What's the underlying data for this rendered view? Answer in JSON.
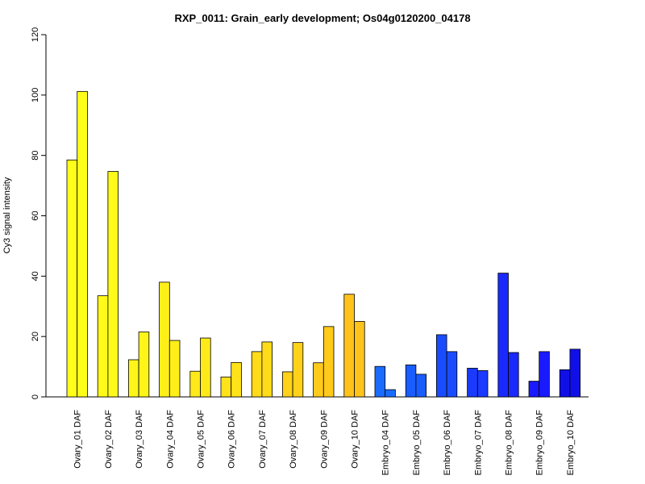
{
  "chart_data": {
    "type": "bar",
    "title": "RXP_0011: Grain_early development; Os04g0120200_04178",
    "xlabel": "",
    "ylabel": "Cy3 signal intensity",
    "ylim": [
      0,
      120
    ],
    "yticks": [
      0,
      20,
      40,
      60,
      80,
      100,
      120
    ],
    "grid": false,
    "legend": "none",
    "categories": [
      "Ovary_01 DAF",
      "Ovary_02 DAF",
      "Ovary_03 DAF",
      "Ovary_04 DAF",
      "Ovary_05 DAF",
      "Ovary_06 DAF",
      "Ovary_07 DAF",
      "Ovary_08 DAF",
      "Ovary_09 DAF",
      "Ovary_10 DAF",
      "Embryo_04 DAF",
      "Embryo_05 DAF",
      "Embryo_06 DAF",
      "Embryo_07 DAF",
      "Embryo_08 DAF",
      "Embryo_09 DAF",
      "Embryo_10 DAF"
    ],
    "colors": [
      "#FFFF19",
      "#FFFA19",
      "#FFF519",
      "#FFEF19",
      "#FFEA19",
      "#FFE219",
      "#FFDB19",
      "#FFD219",
      "#FFCA19",
      "#FFC31A",
      "#1A6CFF",
      "#1A5DFF",
      "#1A4CFF",
      "#1A3BFF",
      "#1A2AFF",
      "#1A1AFF",
      "#1010E6"
    ],
    "series": [
      {
        "values": [
          78.5,
          33.5,
          12.3,
          38.0,
          8.5,
          6.6,
          15.0,
          8.3,
          11.3,
          34.0,
          10.1,
          10.6,
          20.6,
          9.5,
          41.0,
          5.2,
          9.0
        ]
      },
      {
        "values": [
          101.2,
          74.7,
          21.5,
          18.7,
          19.5,
          11.4,
          18.2,
          18.0,
          23.3,
          25.0,
          2.4,
          7.5,
          15.0,
          8.7,
          14.7,
          15.0,
          15.8
        ]
      }
    ]
  }
}
